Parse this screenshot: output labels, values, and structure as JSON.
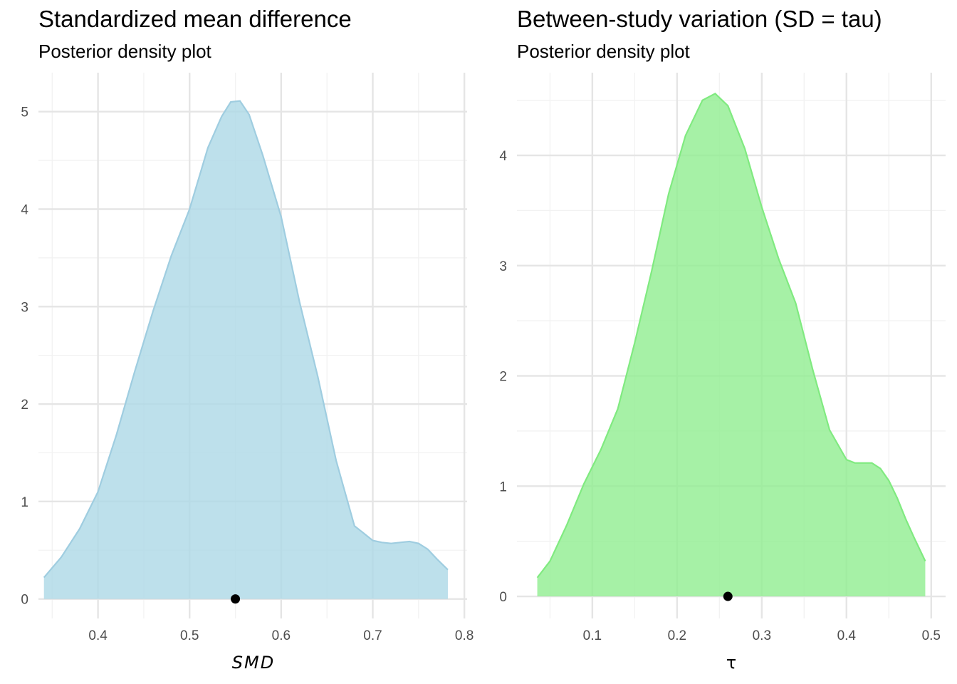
{
  "colors": {
    "background": "#ffffff",
    "grid_major": "#e5e5e5",
    "grid_minor": "#f2f2f2",
    "tick_text": "#4d4d4d",
    "point": "#000000"
  },
  "chart_data": [
    {
      "type": "area",
      "title": "Standardized mean difference",
      "subtitle": "Posterior density plot",
      "xlabel": "SMD",
      "xlabel_style": "italic",
      "ylabel": "",
      "fill_color": "#add8e6",
      "line_color": "#9fcde0",
      "xlim": [
        0.335,
        0.803
      ],
      "ylim": [
        -0.2,
        5.4
      ],
      "x_ticks": [
        0.4,
        0.5,
        0.6,
        0.7,
        0.8
      ],
      "x_tick_labels": [
        "0.4",
        "0.5",
        "0.6",
        "0.7",
        "0.8"
      ],
      "y_ticks": [
        0,
        1,
        2,
        3,
        4,
        5
      ],
      "y_tick_labels": [
        "0",
        "1",
        "2",
        "3",
        "4",
        "5"
      ],
      "grid": true,
      "point": {
        "x": 0.55,
        "y": 0
      },
      "x": [
        0.341,
        0.36,
        0.38,
        0.4,
        0.42,
        0.44,
        0.46,
        0.48,
        0.5,
        0.52,
        0.535,
        0.545,
        0.555,
        0.565,
        0.58,
        0.6,
        0.62,
        0.64,
        0.66,
        0.68,
        0.7,
        0.71,
        0.72,
        0.73,
        0.74,
        0.75,
        0.76,
        0.77,
        0.782
      ],
      "y": [
        0.22,
        0.43,
        0.72,
        1.1,
        1.68,
        2.33,
        2.95,
        3.52,
        4.0,
        4.63,
        4.95,
        5.1,
        5.11,
        4.97,
        4.55,
        3.92,
        3.05,
        2.28,
        1.42,
        0.75,
        0.6,
        0.58,
        0.57,
        0.58,
        0.59,
        0.57,
        0.51,
        0.41,
        0.3
      ]
    },
    {
      "type": "area",
      "title": "Between-study variation (SD = tau)",
      "subtitle": "Posterior density plot",
      "xlabel": "τ",
      "xlabel_style": "normal",
      "ylabel": "",
      "fill_color": "#90ee90",
      "line_color": "#80ea80",
      "xlim": [
        0.011,
        0.517
      ],
      "ylim": [
        -0.2,
        4.75
      ],
      "x_ticks": [
        0.1,
        0.2,
        0.3,
        0.4,
        0.5
      ],
      "x_tick_labels": [
        "0.1",
        "0.2",
        "0.3",
        "0.4",
        "0.5"
      ],
      "y_ticks": [
        0,
        1,
        2,
        3,
        4
      ],
      "y_tick_labels": [
        "0",
        "1",
        "2",
        "3",
        "4"
      ],
      "grid": true,
      "point": {
        "x": 0.26,
        "y": 0
      },
      "x": [
        0.035,
        0.05,
        0.07,
        0.09,
        0.11,
        0.13,
        0.15,
        0.17,
        0.19,
        0.21,
        0.23,
        0.245,
        0.26,
        0.28,
        0.3,
        0.32,
        0.34,
        0.36,
        0.38,
        0.4,
        0.41,
        0.42,
        0.43,
        0.44,
        0.45,
        0.46,
        0.47,
        0.48,
        0.493
      ],
      "y": [
        0.17,
        0.32,
        0.65,
        1.02,
        1.33,
        1.7,
        2.3,
        2.95,
        3.65,
        4.18,
        4.5,
        4.56,
        4.45,
        4.06,
        3.53,
        3.06,
        2.66,
        2.06,
        1.51,
        1.24,
        1.21,
        1.21,
        1.21,
        1.16,
        1.05,
        0.89,
        0.7,
        0.53,
        0.32
      ]
    }
  ]
}
